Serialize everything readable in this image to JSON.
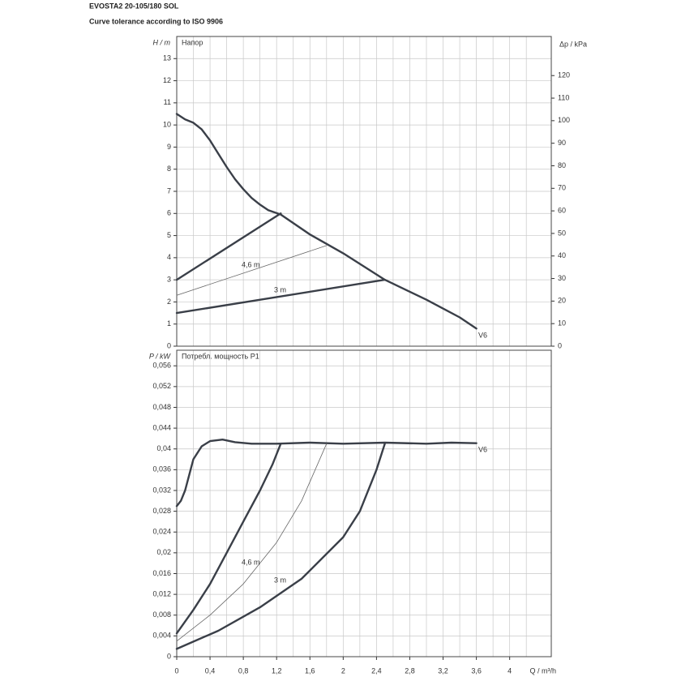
{
  "header": {
    "title": "EVOSTA2 20-105/180 SOL",
    "subtitle": "Curve tolerance according to ISO 9906"
  },
  "chart_data": [
    {
      "type": "line",
      "title": "Напор",
      "ylabel": "H / m",
      "y2label": "Δp / kPa",
      "xlim": [
        0,
        4.5
      ],
      "ylim": [
        0,
        14
      ],
      "y2lim": [
        0,
        137.34
      ],
      "xticks": [
        0,
        0.4,
        0.8,
        1.2,
        1.6,
        2,
        2.4,
        2.8,
        3.2,
        3.6,
        4
      ],
      "xgrid": [
        0.2,
        0.6,
        1.0,
        1.4,
        1.8,
        2.2,
        2.6,
        3.0,
        3.4,
        3.8,
        4.2
      ],
      "yticks": [
        0,
        1,
        2,
        3,
        4,
        5,
        6,
        7,
        8,
        9,
        10,
        11,
        12,
        13
      ],
      "y2ticks": [
        0,
        10,
        20,
        30,
        40,
        50,
        60,
        70,
        80,
        90,
        100,
        110,
        120
      ],
      "grid": true,
      "series": [
        {
          "name": "V6",
          "color": "#3a3f48",
          "style": "thick",
          "x": [
            0,
            0.1,
            0.2,
            0.3,
            0.4,
            0.5,
            0.6,
            0.7,
            0.8,
            0.9,
            1.0,
            1.1,
            1.25,
            1.6,
            2.0,
            2.5,
            3.0,
            3.4,
            3.6
          ],
          "values": [
            10.5,
            10.25,
            10.1,
            9.8,
            9.3,
            8.7,
            8.1,
            7.55,
            7.1,
            6.7,
            6.4,
            6.15,
            5.95,
            5.05,
            4.2,
            3.0,
            2.1,
            1.3,
            0.8
          ]
        },
        {
          "color": "#3a3f48",
          "style": "thick",
          "x": [
            0,
            1.25
          ],
          "values": [
            3.0,
            6.0
          ]
        },
        {
          "name": "4,6 m",
          "color": "#666666",
          "style": "thin",
          "x": [
            0,
            1.8
          ],
          "values": [
            2.3,
            4.55
          ]
        },
        {
          "name": "3 m",
          "color": "#3a3f48",
          "style": "thick",
          "x": [
            0,
            2.5
          ],
          "values": [
            1.5,
            3.0
          ]
        }
      ]
    },
    {
      "type": "line",
      "title": "Потребл. мощность P1",
      "ylabel": "P / kW",
      "xlabel": "Q / m³/h",
      "xlim": [
        0,
        4.5
      ],
      "ylim": [
        0,
        0.059
      ],
      "xticks": [
        0,
        {
          "value": 0.4,
          "label": "0,4"
        },
        {
          "value": 0.8,
          "label": "0,8"
        },
        {
          "value": 1.2,
          "label": "1,2"
        },
        {
          "value": 1.6,
          "label": "1,6"
        },
        2,
        {
          "value": 2.4,
          "label": "2,4"
        },
        {
          "value": 2.8,
          "label": "2,8"
        },
        {
          "value": 3.2,
          "label": "3,2"
        },
        {
          "value": 3.6,
          "label": "3,6"
        },
        4
      ],
      "xgrid": [
        0.2,
        0.6,
        1.0,
        1.4,
        1.8,
        2.2,
        2.6,
        3.0,
        3.4,
        3.8,
        4.2
      ],
      "yticks": [
        0,
        {
          "value": 0.004,
          "label": "0,004"
        },
        {
          "value": 0.008,
          "label": "0,008"
        },
        {
          "value": 0.012,
          "label": "0,012"
        },
        {
          "value": 0.016,
          "label": "0,016"
        },
        {
          "value": 0.02,
          "label": "0,02"
        },
        {
          "value": 0.024,
          "label": "0,024"
        },
        {
          "value": 0.028,
          "label": "0,028"
        },
        {
          "value": 0.032,
          "label": "0,032"
        },
        {
          "value": 0.036,
          "label": "0,036"
        },
        {
          "value": 0.04,
          "label": "0,04"
        },
        {
          "value": 0.044,
          "label": "0,044"
        },
        {
          "value": 0.048,
          "label": "0,048"
        },
        {
          "value": 0.052,
          "label": "0,052"
        },
        {
          "value": 0.056,
          "label": "0,056"
        }
      ],
      "grid": true,
      "series": [
        {
          "name": "V6",
          "color": "#3a3f48",
          "style": "thick",
          "x": [
            0,
            0.05,
            0.1,
            0.15,
            0.2,
            0.3,
            0.4,
            0.55,
            0.7,
            0.9,
            1.2,
            1.6,
            2.0,
            2.5,
            3.0,
            3.3,
            3.6
          ],
          "values": [
            0.029,
            0.03,
            0.032,
            0.035,
            0.038,
            0.0405,
            0.0415,
            0.0418,
            0.0413,
            0.041,
            0.041,
            0.0412,
            0.041,
            0.0412,
            0.041,
            0.0412,
            0.0411
          ]
        },
        {
          "color": "#3a3f48",
          "style": "thick",
          "x": [
            0,
            0.2,
            0.4,
            0.6,
            0.8,
            1.0,
            1.15,
            1.25
          ],
          "values": [
            0.0045,
            0.009,
            0.014,
            0.02,
            0.026,
            0.032,
            0.037,
            0.041
          ]
        },
        {
          "name": "4,6 m",
          "color": "#666666",
          "style": "thin",
          "x": [
            0,
            0.4,
            0.8,
            1.2,
            1.5,
            1.8
          ],
          "values": [
            0.003,
            0.008,
            0.014,
            0.022,
            0.03,
            0.041
          ]
        },
        {
          "name": "3 m",
          "color": "#3a3f48",
          "style": "thick",
          "x": [
            0,
            0.5,
            1.0,
            1.5,
            2.0,
            2.2,
            2.4,
            2.5
          ],
          "values": [
            0.0015,
            0.005,
            0.0095,
            0.015,
            0.023,
            0.028,
            0.036,
            0.041
          ]
        }
      ]
    }
  ]
}
